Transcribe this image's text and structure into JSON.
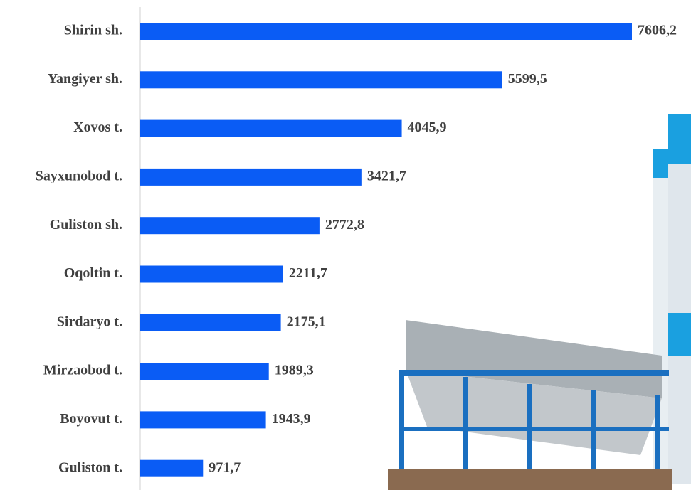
{
  "chart_data": {
    "type": "barh",
    "categories": [
      "Shirin sh.",
      "Yangiyer sh.",
      "Xovos t.",
      "Sayxunobod t.",
      "Guliston sh.",
      "Oqoltin t.",
      "Sirdaryo t.",
      "Mirzaobod t.",
      "Boyovut t.",
      "Guliston t."
    ],
    "values": [
      7606.2,
      5599.5,
      4045.9,
      3421.7,
      2772.8,
      2211.7,
      2175.1,
      1989.3,
      1943.9,
      971.7
    ],
    "value_labels": [
      "7606,2",
      "5599,5",
      "4045,9",
      "3421,7",
      "2772,8",
      "2211,7",
      "2175,1",
      "1989,3",
      "1943,9",
      "971,7"
    ],
    "color": "#0a5cf5"
  }
}
